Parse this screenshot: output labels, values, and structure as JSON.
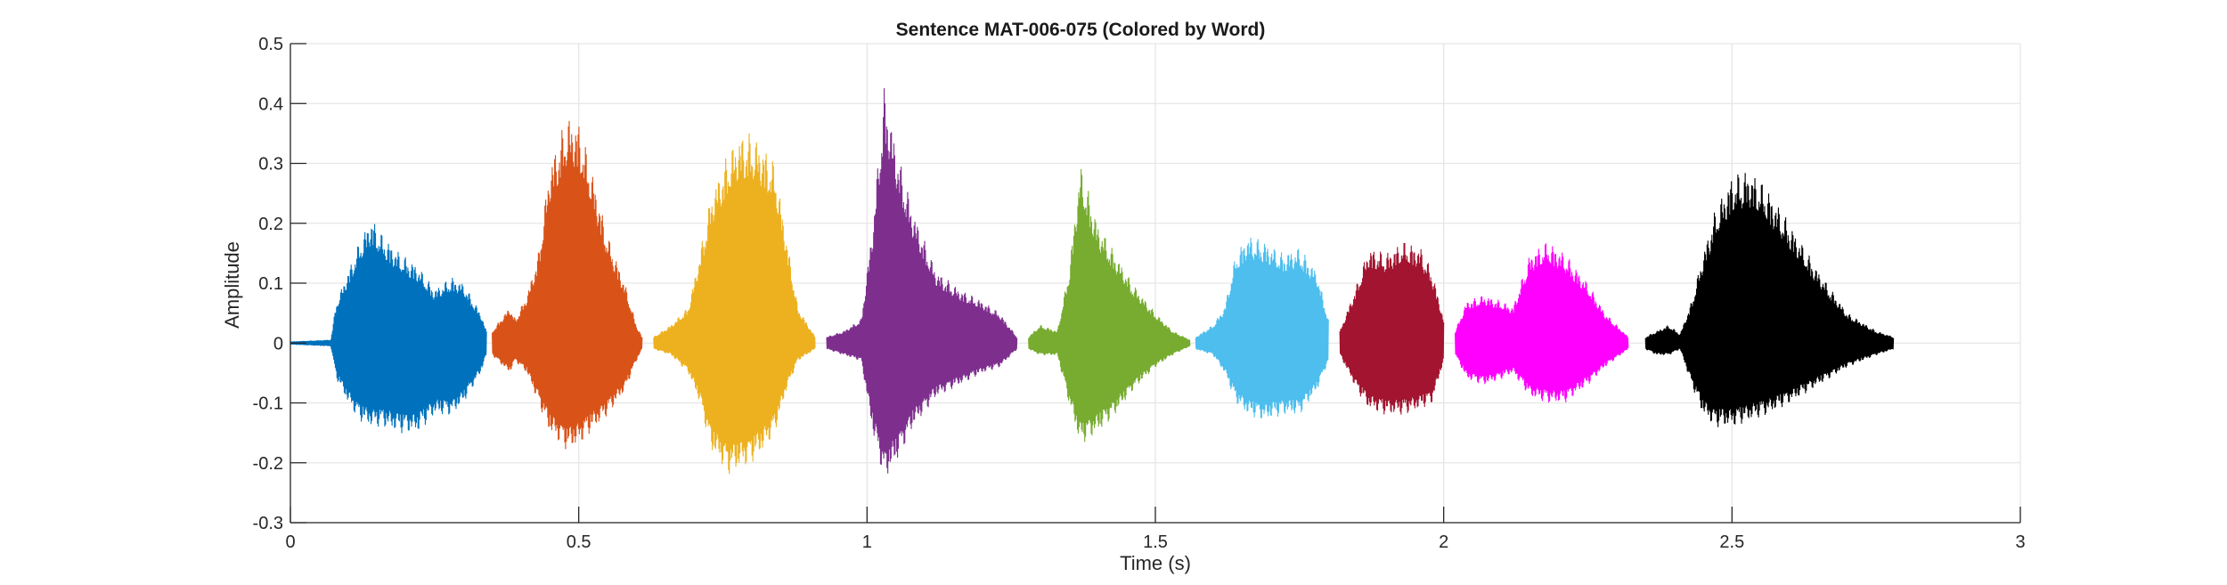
{
  "chart_data": {
    "type": "line",
    "title": "Sentence MAT-006-075 (Colored by Word)",
    "xlabel": "Time (s)",
    "ylabel": "Amplitude",
    "xlim": [
      0,
      3
    ],
    "ylim": [
      -0.3,
      0.5
    ],
    "xticks": [
      0,
      0.5,
      1,
      1.5,
      2,
      2.5,
      3
    ],
    "xtick_labels": [
      "0",
      "0.5",
      "1",
      "1.5",
      "2",
      "2.5",
      "3"
    ],
    "yticks": [
      -0.3,
      -0.2,
      -0.1,
      0,
      0.1,
      0.2,
      0.3,
      0.4,
      0.5
    ],
    "ytick_labels": [
      "-0.3",
      "-0.2",
      "-0.1",
      "0",
      "0.1",
      "0.2",
      "0.3",
      "0.4",
      "0.5"
    ],
    "grid": true,
    "series": [
      {
        "color": "#0072BD",
        "x": [
          0.0,
          0.07,
          0.08,
          0.1,
          0.12,
          0.14,
          0.16,
          0.19,
          0.22,
          0.25,
          0.28,
          0.3,
          0.33,
          0.34
        ],
        "envelope_upper": [
          0.002,
          0.005,
          0.07,
          0.12,
          0.17,
          0.21,
          0.18,
          0.15,
          0.13,
          0.09,
          0.11,
          0.1,
          0.05,
          0.02
        ],
        "envelope_lower": [
          -0.002,
          -0.005,
          -0.06,
          -0.1,
          -0.13,
          -0.14,
          -0.14,
          -0.15,
          -0.15,
          -0.12,
          -0.12,
          -0.1,
          -0.05,
          -0.02
        ]
      },
      {
        "color": "#D95319",
        "x": [
          0.35,
          0.38,
          0.39,
          0.41,
          0.43,
          0.45,
          0.48,
          0.5,
          0.52,
          0.55,
          0.58,
          0.6,
          0.61
        ],
        "envelope_upper": [
          0.02,
          0.06,
          0.04,
          0.08,
          0.15,
          0.3,
          0.38,
          0.37,
          0.3,
          0.18,
          0.1,
          0.03,
          0.01
        ],
        "envelope_lower": [
          -0.02,
          -0.05,
          -0.03,
          -0.05,
          -0.1,
          -0.15,
          -0.18,
          -0.17,
          -0.15,
          -0.12,
          -0.08,
          -0.03,
          -0.01
        ]
      },
      {
        "color": "#EDB120",
        "x": [
          0.63,
          0.66,
          0.69,
          0.71,
          0.73,
          0.76,
          0.78,
          0.8,
          0.82,
          0.84,
          0.86,
          0.88,
          0.91
        ],
        "envelope_upper": [
          0.01,
          0.03,
          0.06,
          0.15,
          0.25,
          0.32,
          0.35,
          0.35,
          0.33,
          0.3,
          0.18,
          0.06,
          0.01
        ],
        "envelope_lower": [
          -0.01,
          -0.02,
          -0.05,
          -0.1,
          -0.18,
          -0.22,
          -0.21,
          -0.2,
          -0.18,
          -0.15,
          -0.08,
          -0.03,
          -0.01
        ]
      },
      {
        "color": "#7E2F8E",
        "x": [
          0.93,
          0.96,
          0.99,
          1.01,
          1.03,
          1.05,
          1.08,
          1.12,
          1.16,
          1.2,
          1.23,
          1.26
        ],
        "envelope_upper": [
          0.01,
          0.02,
          0.04,
          0.2,
          0.43,
          0.33,
          0.22,
          0.12,
          0.09,
          0.07,
          0.05,
          0.01
        ],
        "envelope_lower": [
          -0.01,
          -0.02,
          -0.03,
          -0.15,
          -0.23,
          -0.2,
          -0.14,
          -0.09,
          -0.07,
          -0.05,
          -0.04,
          -0.01
        ]
      },
      {
        "color": "#77AC30",
        "x": [
          1.28,
          1.3,
          1.33,
          1.35,
          1.37,
          1.4,
          1.43,
          1.46,
          1.5,
          1.53,
          1.56
        ],
        "envelope_upper": [
          0.01,
          0.03,
          0.02,
          0.12,
          0.3,
          0.2,
          0.15,
          0.1,
          0.05,
          0.02,
          0.005
        ],
        "envelope_lower": [
          -0.01,
          -0.02,
          -0.02,
          -0.1,
          -0.17,
          -0.15,
          -0.12,
          -0.08,
          -0.04,
          -0.02,
          -0.005
        ]
      },
      {
        "color": "#4DBEEE",
        "x": [
          1.57,
          1.6,
          1.62,
          1.64,
          1.66,
          1.69,
          1.72,
          1.75,
          1.78,
          1.8
        ],
        "envelope_upper": [
          0.01,
          0.03,
          0.06,
          0.15,
          0.18,
          0.17,
          0.15,
          0.16,
          0.12,
          0.04
        ],
        "envelope_lower": [
          -0.01,
          -0.02,
          -0.05,
          -0.1,
          -0.12,
          -0.13,
          -0.12,
          -0.12,
          -0.08,
          -0.03
        ]
      },
      {
        "color": "#A2142F",
        "x": [
          1.82,
          1.85,
          1.87,
          1.9,
          1.93,
          1.96,
          1.98,
          2.0
        ],
        "envelope_upper": [
          0.02,
          0.1,
          0.16,
          0.15,
          0.17,
          0.16,
          0.12,
          0.04
        ],
        "envelope_lower": [
          -0.02,
          -0.08,
          -0.11,
          -0.12,
          -0.12,
          -0.11,
          -0.1,
          -0.03
        ]
      },
      {
        "color": "#FF00FF",
        "x": [
          2.02,
          2.04,
          2.07,
          2.1,
          2.12,
          2.15,
          2.18,
          2.21,
          2.25,
          2.28,
          2.32
        ],
        "envelope_upper": [
          0.02,
          0.07,
          0.08,
          0.07,
          0.06,
          0.15,
          0.17,
          0.15,
          0.1,
          0.05,
          0.01
        ],
        "envelope_lower": [
          -0.02,
          -0.06,
          -0.07,
          -0.06,
          -0.05,
          -0.09,
          -0.1,
          -0.1,
          -0.07,
          -0.04,
          -0.01
        ]
      },
      {
        "color": "#000000",
        "x": [
          2.35,
          2.37,
          2.39,
          2.41,
          2.43,
          2.45,
          2.47,
          2.5,
          2.53,
          2.56,
          2.6,
          2.65,
          2.7,
          2.75,
          2.78
        ],
        "envelope_upper": [
          0.01,
          0.02,
          0.03,
          0.015,
          0.07,
          0.15,
          0.22,
          0.28,
          0.29,
          0.26,
          0.2,
          0.12,
          0.05,
          0.02,
          0.01
        ],
        "envelope_lower": [
          -0.01,
          -0.02,
          -0.02,
          -0.01,
          -0.07,
          -0.12,
          -0.14,
          -0.14,
          -0.13,
          -0.12,
          -0.1,
          -0.07,
          -0.04,
          -0.02,
          -0.01
        ]
      }
    ]
  }
}
